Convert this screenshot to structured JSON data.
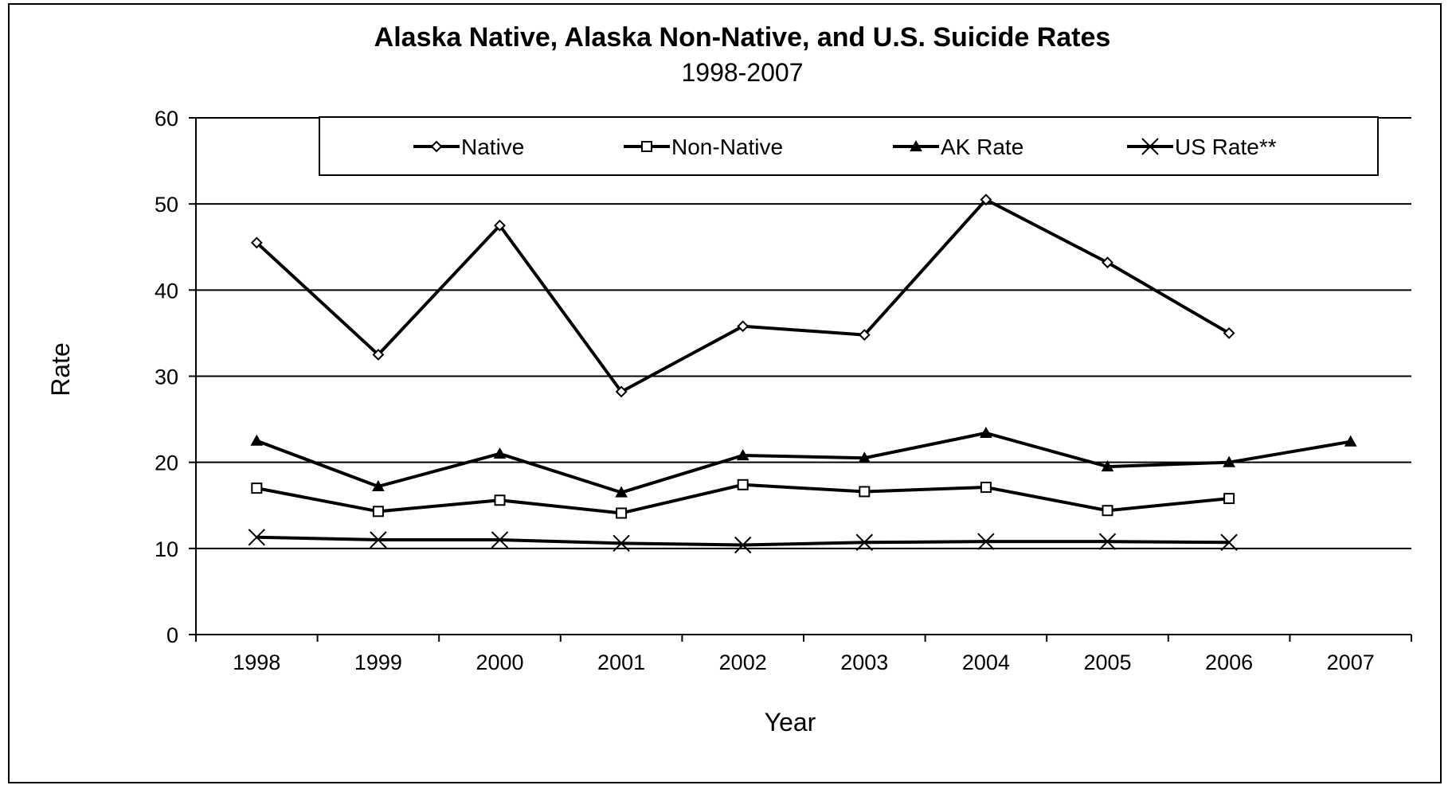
{
  "chart_data": {
    "type": "line",
    "title": "Alaska Native, Alaska Non-Native, and U.S. Suicide Rates",
    "subtitle": "1998-2007",
    "xlabel": "Year",
    "ylabel": "Rate",
    "x": [
      "1998",
      "1999",
      "2000",
      "2001",
      "2002",
      "2003",
      "2004",
      "2005",
      "2006",
      "2007"
    ],
    "ylim": [
      0,
      60
    ],
    "yticks": [
      0,
      10,
      20,
      30,
      40,
      50,
      60
    ],
    "grid": "horizontal",
    "legend_position": "top",
    "series": [
      {
        "name": "Native",
        "marker": "diamond-open",
        "values": [
          45.5,
          32.5,
          47.5,
          28.2,
          35.8,
          34.8,
          50.5,
          43.2,
          35.0,
          null
        ]
      },
      {
        "name": "Non-Native",
        "marker": "square-open",
        "values": [
          17.0,
          14.3,
          15.6,
          14.1,
          17.4,
          16.6,
          17.1,
          14.4,
          15.8,
          null
        ]
      },
      {
        "name": "AK Rate",
        "marker": "triangle-filled",
        "values": [
          22.5,
          17.2,
          21.0,
          16.5,
          20.8,
          20.5,
          23.4,
          19.5,
          20.0,
          22.4
        ]
      },
      {
        "name": "US Rate**",
        "marker": "x",
        "values": [
          11.3,
          11.0,
          11.0,
          10.6,
          10.4,
          10.7,
          10.8,
          10.8,
          10.7,
          null
        ]
      }
    ]
  }
}
